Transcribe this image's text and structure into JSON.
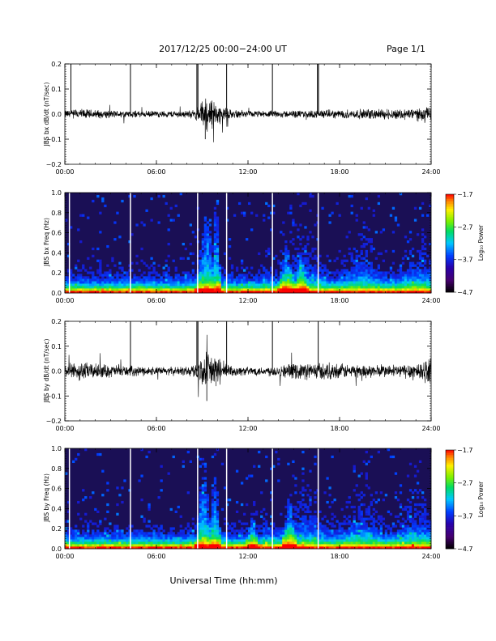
{
  "header": {
    "title": "2017/12/25   00:00−24:00  UT",
    "page": "Page 1/1"
  },
  "footer": {
    "xlabel": "Universal Time (hh:mm)"
  },
  "colorbar": {
    "label": "Log₁₀ Power",
    "ticks": [
      "−1.7",
      "−2.7",
      "−3.7",
      "−4.7"
    ],
    "range": [
      -4.7,
      -1.7
    ]
  },
  "colors": {
    "trace": "#000000",
    "spectrogram_background": "#1a0f55",
    "gap_line": "#ffffff"
  },
  "chart_data": [
    {
      "type": "line",
      "ylabel": "JBS bx dB/dt (nT/sec)",
      "xlim": [
        0,
        24
      ],
      "ylim": [
        -0.2,
        0.2
      ],
      "x_ticks": [
        "00:00",
        "06:00",
        "12:00",
        "18:00",
        "24:00"
      ],
      "y_ticks": [
        "0.2",
        "0.1",
        "0.0",
        "−0.1",
        "−0.2"
      ],
      "noise_envelope": {
        "x": [
          0,
          1,
          2,
          3,
          4,
          5,
          6,
          7,
          8,
          8.5,
          9,
          9.3,
          9.6,
          10,
          10.5,
          11,
          12,
          13,
          14,
          15,
          16,
          17,
          18,
          19,
          20,
          21,
          22,
          23,
          24
        ],
        "amplitude": [
          0.02,
          0.025,
          0.02,
          0.018,
          0.017,
          0.015,
          0.015,
          0.016,
          0.017,
          0.02,
          0.06,
          0.09,
          0.08,
          0.05,
          0.03,
          0.018,
          0.015,
          0.015,
          0.016,
          0.017,
          0.018,
          0.02,
          0.02,
          0.022,
          0.024,
          0.025,
          0.026,
          0.03,
          0.035
        ]
      },
      "spikes": [
        {
          "x": 0.4,
          "y": 0.2
        },
        {
          "x": 4.3,
          "y": 0.2
        },
        {
          "x": 8.65,
          "y": 0.2
        },
        {
          "x": 8.72,
          "y": 0.2
        },
        {
          "x": 10.6,
          "y": 0.2
        },
        {
          "x": 13.6,
          "y": 0.2
        },
        {
          "x": 16.55,
          "y": 0.2
        },
        {
          "x": 16.62,
          "y": 0.2
        }
      ],
      "min_dip": {
        "x": 9.2,
        "y": -0.1
      }
    },
    {
      "type": "heatmap",
      "ylabel": "JBS bx Freq (Hz)",
      "xlim": [
        0,
        24
      ],
      "ylim": [
        0,
        1.0
      ],
      "x_ticks": [
        "00:00",
        "06:00",
        "12:00",
        "18:00",
        "24:00"
      ],
      "y_ticks": [
        "1.0",
        "0.8",
        "0.6",
        "0.4",
        "0.2",
        "0.0"
      ],
      "z_range": [
        -4.7,
        -1.7
      ],
      "data_gaps": [
        0.3,
        4.3,
        8.7,
        10.6,
        13.6,
        16.6
      ],
      "activity_bursts": [
        {
          "x": 9.3,
          "width": 0.8,
          "top_freq": 0.9
        },
        {
          "x": 9.9,
          "width": 0.4,
          "top_freq": 1.0
        },
        {
          "x": 14.5,
          "width": 0.6,
          "top_freq": 0.55
        },
        {
          "x": 15.5,
          "width": 0.5,
          "top_freq": 0.45
        }
      ]
    },
    {
      "type": "line",
      "ylabel": "JBS by dB/dt (nT/sec)",
      "xlim": [
        0,
        24
      ],
      "ylim": [
        -0.2,
        0.2
      ],
      "x_ticks": [
        "00:00",
        "06:00",
        "12:00",
        "18:00",
        "24:00"
      ],
      "y_ticks": [
        "0.2",
        "0.1",
        "0.0",
        "−0.1",
        "−0.2"
      ],
      "noise_envelope": {
        "x": [
          0,
          1,
          2,
          3,
          4,
          5,
          6,
          7,
          8,
          8.5,
          9,
          9.3,
          9.6,
          10,
          10.5,
          11,
          12,
          13,
          14,
          15,
          16,
          17,
          18,
          19,
          20,
          21,
          22,
          23,
          24
        ],
        "amplitude": [
          0.03,
          0.045,
          0.035,
          0.03,
          0.025,
          0.022,
          0.02,
          0.02,
          0.022,
          0.03,
          0.07,
          0.09,
          0.09,
          0.07,
          0.04,
          0.025,
          0.02,
          0.022,
          0.028,
          0.035,
          0.04,
          0.04,
          0.035,
          0.032,
          0.03,
          0.03,
          0.032,
          0.045,
          0.06
        ]
      },
      "spikes": [
        {
          "x": 4.3,
          "y": 0.2
        },
        {
          "x": 8.65,
          "y": 0.2
        },
        {
          "x": 8.72,
          "y": 0.2
        },
        {
          "x": 10.6,
          "y": 0.2
        },
        {
          "x": 13.6,
          "y": 0.2
        },
        {
          "x": 16.6,
          "y": 0.2
        }
      ],
      "min_dip": {
        "x": 9.3,
        "y": -0.12
      }
    },
    {
      "type": "heatmap",
      "ylabel": "JBS by Freq (Hz)",
      "xlim": [
        0,
        24
      ],
      "ylim": [
        0,
        1.0
      ],
      "x_ticks": [
        "00:00",
        "06:00",
        "12:00",
        "18:00",
        "24:00"
      ],
      "y_ticks": [
        "1.0",
        "0.8",
        "0.6",
        "0.4",
        "0.2",
        "0.0"
      ],
      "z_range": [
        -4.7,
        -1.7
      ],
      "data_gaps": [
        0.3,
        4.3,
        8.7,
        10.6,
        13.6,
        16.6
      ],
      "activity_bursts": [
        {
          "x": 9.1,
          "width": 0.6,
          "top_freq": 1.0
        },
        {
          "x": 9.8,
          "width": 0.5,
          "top_freq": 0.85
        },
        {
          "x": 14.7,
          "width": 0.6,
          "top_freq": 0.55
        },
        {
          "x": 12.3,
          "width": 0.5,
          "top_freq": 0.4
        }
      ]
    }
  ]
}
